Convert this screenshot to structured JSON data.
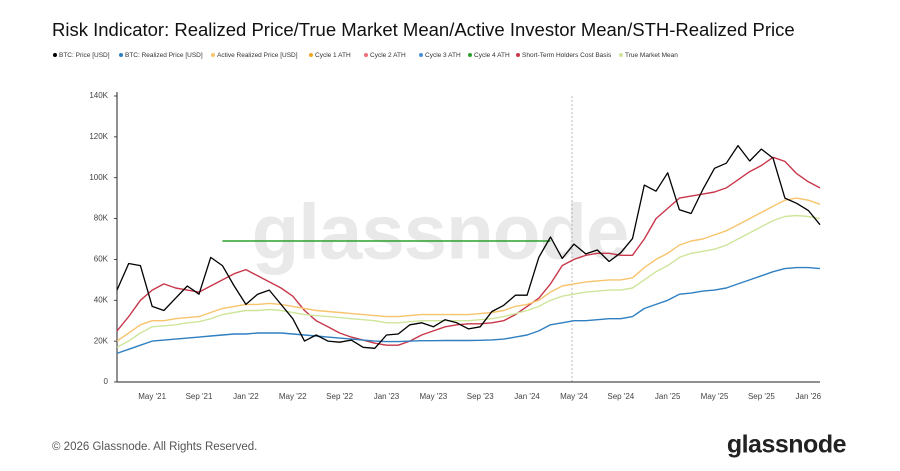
{
  "watermark": "glassnode",
  "footer": "© 2026 Glassnode. All Rights Reserved.",
  "logo": "glassnode",
  "chart_data": {
    "type": "line",
    "title": "Risk Indicator: Realized Price/True Market Mean/Active Investor Mean/STH-Realized Price",
    "categories": [
      null,
      null,
      null,
      "May '21",
      null,
      null,
      null,
      "Sep '21",
      null,
      null,
      null,
      "Jan '22",
      null,
      null,
      null,
      "May '22",
      null,
      null,
      null,
      "Sep '22",
      null,
      null,
      null,
      "Jan '23",
      null,
      null,
      null,
      "May '23",
      null,
      null,
      null,
      "Sep '23",
      null,
      null,
      null,
      "Jan '24",
      null,
      null,
      null,
      "May '24",
      null,
      null,
      null,
      "Sep '24",
      null,
      null,
      null,
      "Jan '25",
      null,
      null,
      null,
      "May '25",
      null,
      null,
      null,
      "Sep '25",
      null,
      null,
      null,
      "Jan '26",
      null
    ],
    "ylim": [
      0,
      140000
    ],
    "yticks": [
      {
        "value": 0,
        "label": "0"
      },
      {
        "value": 20000,
        "label": "20K"
      },
      {
        "value": 40000,
        "label": "40K"
      },
      {
        "value": 60000,
        "label": "60K"
      },
      {
        "value": 80000,
        "label": "80K"
      },
      {
        "value": 100000,
        "label": "100K"
      },
      {
        "value": 120000,
        "label": "120K"
      },
      {
        "value": 140000,
        "label": "140K"
      }
    ],
    "grid": false,
    "legend": "top",
    "series": [
      {
        "name": "BTC: Price [USD]",
        "color": "#000000",
        "values": [
          45000,
          58000,
          57000,
          37000,
          35000,
          41000,
          47000,
          43000,
          61000,
          57000,
          47000,
          38000,
          43000,
          45000,
          38000,
          31000,
          20000,
          23000,
          20000,
          19500,
          20500,
          17000,
          16500,
          23000,
          23500,
          28000,
          29000,
          27000,
          30500,
          29000,
          26000,
          27000,
          34500,
          37500,
          42500,
          42500,
          61000,
          71000,
          60500,
          67500,
          62700,
          64600,
          59000,
          63300,
          70200,
          96400,
          93400,
          102400,
          84300,
          82500,
          94200,
          104600,
          107100,
          115700,
          108200,
          114000,
          109500,
          90000,
          87500,
          84000,
          77000
        ]
      },
      {
        "name": "BTC: Realized Price [USD]",
        "color": "#2f7fc1",
        "values": [
          14000,
          16000,
          18000,
          20000,
          20500,
          21000,
          21500,
          22000,
          22500,
          23000,
          23500,
          23500,
          24000,
          24000,
          24000,
          23500,
          23000,
          22500,
          22000,
          21500,
          21000,
          20500,
          20000,
          19800,
          19800,
          20000,
          20200,
          20200,
          20300,
          20300,
          20300,
          20400,
          20600,
          21000,
          22000,
          23000,
          25000,
          28000,
          29000,
          30000,
          30000,
          30500,
          31000,
          31000,
          32000,
          36000,
          38000,
          40000,
          43000,
          43500,
          44500,
          45000,
          46000,
          48000,
          50000,
          52000,
          54000,
          55500,
          56000,
          56000,
          55500
        ]
      },
      {
        "name": "Active Realized Price [USD]",
        "color": "#f7c46c",
        "values": [
          20000,
          24000,
          28000,
          30000,
          30000,
          31000,
          31500,
          32000,
          34000,
          36000,
          37000,
          38000,
          38000,
          38500,
          38000,
          37000,
          36000,
          35000,
          34500,
          34000,
          33500,
          33000,
          32500,
          32000,
          32000,
          32500,
          33000,
          33000,
          33000,
          33000,
          33000,
          33500,
          34000,
          35000,
          37000,
          38000,
          40000,
          44000,
          47000,
          48000,
          49000,
          49500,
          50000,
          50000,
          51000,
          56000,
          60000,
          63000,
          67000,
          69000,
          70000,
          72000,
          74000,
          77000,
          80000,
          83000,
          86000,
          89000,
          90000,
          89000,
          87000
        ]
      },
      {
        "name": "Cycle 1 ATH",
        "color": "#f5a623"
      },
      {
        "name": "Cycle 2 ATH",
        "color": "#f06e7a"
      },
      {
        "name": "Cycle 3 ATH",
        "color": "#4a90d9"
      },
      {
        "name": "Cycle 4 ATH",
        "color": "#2ca02c",
        "values": [
          null,
          null,
          null,
          null,
          null,
          null,
          null,
          null,
          null,
          69000,
          69000,
          69000,
          69000,
          69000,
          69000,
          69000,
          69000,
          69000,
          69000,
          69000,
          69000,
          69000,
          69000,
          69000,
          69000,
          69000,
          69000,
          69000,
          69000,
          69000,
          69000,
          69000,
          69000,
          69000,
          69000,
          69000,
          69000,
          69000,
          null,
          null,
          null,
          null,
          null,
          null,
          null,
          null,
          null,
          null,
          null,
          null,
          null,
          null,
          null,
          null,
          null,
          null,
          null,
          null,
          null,
          null,
          null
        ]
      },
      {
        "name": "Short-Term Holders Cost Basis",
        "color": "#c8374a",
        "values": [
          25000,
          32000,
          40000,
          45000,
          48000,
          46000,
          45000,
          44000,
          47000,
          50000,
          53000,
          55000,
          52000,
          49000,
          46000,
          42000,
          35000,
          30000,
          27000,
          24000,
          22000,
          20500,
          19000,
          18000,
          18000,
          20000,
          23000,
          25000,
          27000,
          28000,
          28500,
          28500,
          29000,
          30000,
          33000,
          37000,
          41000,
          48000,
          57000,
          60000,
          62000,
          63000,
          63000,
          62000,
          62000,
          70000,
          80000,
          85000,
          90000,
          91000,
          92000,
          93000,
          95000,
          99000,
          103000,
          106000,
          110000,
          108000,
          102000,
          98000,
          95000
        ]
      },
      {
        "name": "True Market Mean",
        "color": "#cfe59b",
        "values": [
          17000,
          20000,
          24000,
          27000,
          27500,
          28000,
          29000,
          29500,
          31000,
          33000,
          34000,
          35000,
          35000,
          35500,
          35000,
          34000,
          33000,
          32500,
          32000,
          31500,
          31000,
          30500,
          30000,
          29000,
          29000,
          29500,
          30000,
          30000,
          30000,
          30000,
          30000,
          30500,
          31000,
          32000,
          33500,
          35000,
          37000,
          40000,
          42000,
          43000,
          44000,
          44500,
          45000,
          45000,
          46000,
          50000,
          54000,
          57000,
          61000,
          63000,
          64000,
          65000,
          67000,
          70000,
          73000,
          76000,
          79000,
          81000,
          81500,
          81000,
          80000
        ]
      }
    ]
  }
}
